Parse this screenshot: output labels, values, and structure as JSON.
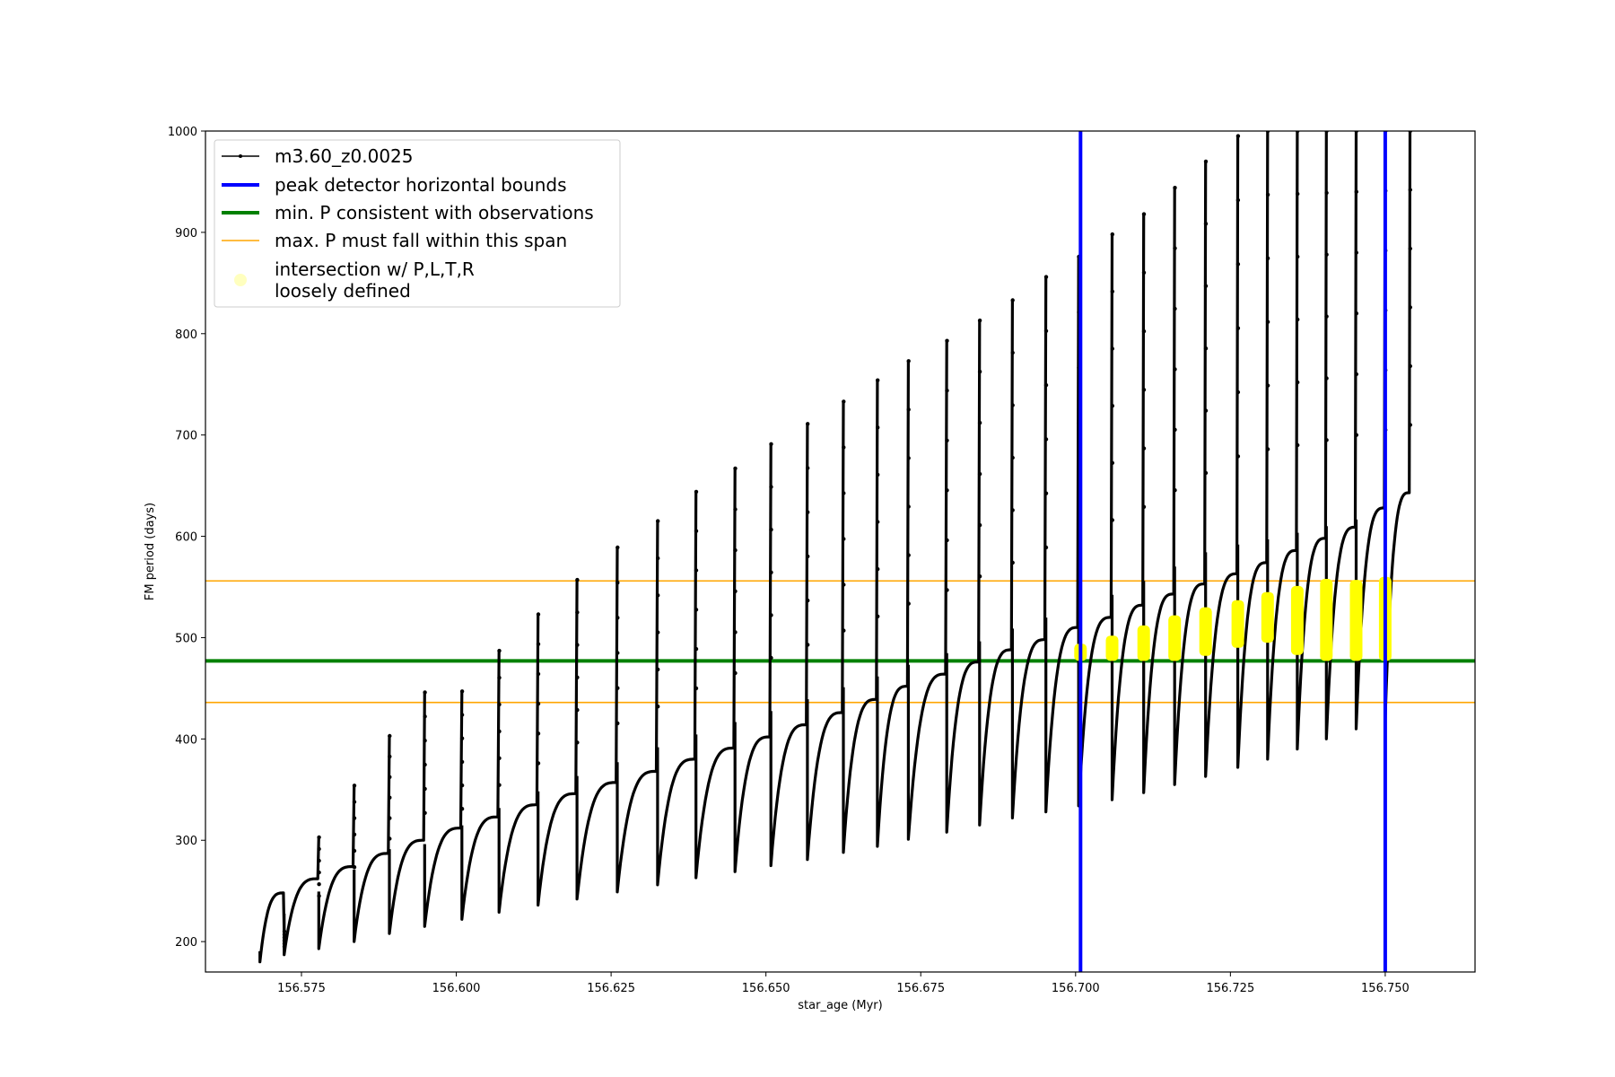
{
  "chart_data": {
    "type": "line",
    "title": "",
    "xlabel": "star_age (Myr)",
    "ylabel": "FM period (days)",
    "xlim": [
      156.5595,
      156.7645
    ],
    "ylim": [
      170,
      1000
    ],
    "xticks": [
      156.575,
      156.6,
      156.625,
      156.65,
      156.675,
      156.7,
      156.725,
      156.75
    ],
    "xtick_labels": [
      "156.575",
      "156.600",
      "156.625",
      "156.650",
      "156.675",
      "156.700",
      "156.725",
      "156.750"
    ],
    "yticks": [
      200,
      300,
      400,
      500,
      600,
      700,
      800,
      900,
      1000
    ],
    "ytick_labels": [
      "200",
      "300",
      "400",
      "500",
      "600",
      "700",
      "800",
      "900",
      "1000"
    ],
    "grid": false,
    "legend_position": "top-left",
    "series": [
      {
        "name": "m3.60_z0.0025",
        "kind": "line-marker",
        "color": "#000000",
        "pulses": [
          {
            "x0": 156.5683,
            "x1": 156.5722,
            "min": 180,
            "max": 248,
            "spike": 210
          },
          {
            "x0": 156.5722,
            "x1": 156.5778,
            "min": 187,
            "max": 262,
            "spike": 303
          },
          {
            "x0": 156.5778,
            "x1": 156.5835,
            "min": 193,
            "max": 274,
            "spike": 354
          },
          {
            "x0": 156.5835,
            "x1": 156.5892,
            "min": 200,
            "max": 287,
            "spike": 403
          },
          {
            "x0": 156.5892,
            "x1": 156.5949,
            "min": 208,
            "max": 300,
            "spike": 446
          },
          {
            "x0": 156.5949,
            "x1": 156.6009,
            "min": 215,
            "max": 312,
            "spike": 447
          },
          {
            "x0": 156.6009,
            "x1": 156.6069,
            "min": 222,
            "max": 323,
            "spike": 487
          },
          {
            "x0": 156.6069,
            "x1": 156.6132,
            "min": 229,
            "max": 335,
            "spike": 523
          },
          {
            "x0": 156.6132,
            "x1": 156.6195,
            "min": 236,
            "max": 346,
            "spike": 557
          },
          {
            "x0": 156.6195,
            "x1": 156.626,
            "min": 242,
            "max": 357,
            "spike": 589
          },
          {
            "x0": 156.626,
            "x1": 156.6325,
            "min": 249,
            "max": 368,
            "spike": 615
          },
          {
            "x0": 156.6325,
            "x1": 156.6387,
            "min": 256,
            "max": 380,
            "spike": 644
          },
          {
            "x0": 156.6387,
            "x1": 156.645,
            "min": 263,
            "max": 391,
            "spike": 667
          },
          {
            "x0": 156.645,
            "x1": 156.6508,
            "min": 269,
            "max": 402,
            "spike": 691
          },
          {
            "x0": 156.6508,
            "x1": 156.6567,
            "min": 275,
            "max": 414,
            "spike": 711
          },
          {
            "x0": 156.6567,
            "x1": 156.6625,
            "min": 281,
            "max": 426,
            "spike": 733
          },
          {
            "x0": 156.6625,
            "x1": 156.668,
            "min": 288,
            "max": 439,
            "spike": 754
          },
          {
            "x0": 156.668,
            "x1": 156.673,
            "min": 294,
            "max": 452,
            "spike": 773
          },
          {
            "x0": 156.673,
            "x1": 156.6792,
            "min": 301,
            "max": 464,
            "spike": 793
          },
          {
            "x0": 156.6792,
            "x1": 156.6845,
            "min": 308,
            "max": 476,
            "spike": 813
          },
          {
            "x0": 156.6845,
            "x1": 156.6898,
            "min": 315,
            "max": 488,
            "spike": 833
          },
          {
            "x0": 156.6898,
            "x1": 156.6952,
            "min": 322,
            "max": 498,
            "spike": 856
          },
          {
            "x0": 156.6952,
            "x1": 156.7005,
            "min": 328,
            "max": 510,
            "spike": 876
          },
          {
            "x0": 156.7005,
            "x1": 156.7059,
            "min": 334,
            "max": 520,
            "spike": 898
          },
          {
            "x0": 156.7059,
            "x1": 156.711,
            "min": 340,
            "max": 532,
            "spike": 918
          },
          {
            "x0": 156.711,
            "x1": 156.716,
            "min": 347,
            "max": 543,
            "spike": 944
          },
          {
            "x0": 156.716,
            "x1": 156.721,
            "min": 355,
            "max": 553,
            "spike": 970
          },
          {
            "x0": 156.721,
            "x1": 156.7262,
            "min": 363,
            "max": 563,
            "spike": 995
          },
          {
            "x0": 156.7262,
            "x1": 156.731,
            "min": 372,
            "max": 574,
            "spike": 1000
          },
          {
            "x0": 156.731,
            "x1": 156.7358,
            "min": 380,
            "max": 586,
            "spike": 1000
          },
          {
            "x0": 156.7358,
            "x1": 156.7405,
            "min": 390,
            "max": 598,
            "spike": 1000
          },
          {
            "x0": 156.7405,
            "x1": 156.7453,
            "min": 400,
            "max": 609,
            "spike": 1000
          },
          {
            "x0": 156.7453,
            "x1": 156.75,
            "min": 410,
            "max": 628,
            "spike": 1000
          },
          {
            "x0": 156.75,
            "x1": 156.754,
            "min": 420,
            "max": 643,
            "spike": 1000
          }
        ]
      },
      {
        "name": "peak detector horizontal bounds",
        "kind": "vline",
        "color": "#0000ff",
        "x": [
          156.7008,
          156.75
        ]
      },
      {
        "name": "min. P consistent with observations",
        "kind": "hline",
        "color": "#008000",
        "y": 477
      },
      {
        "name": "max. P must fall within this span",
        "kind": "hline",
        "color": "#ffa500",
        "y": [
          556,
          436
        ]
      },
      {
        "name": "intersection w/ P,L,T,R\nloosely defined",
        "kind": "scatter",
        "color": "#ffff00",
        "segments": [
          {
            "x": 156.7008,
            "y0": 477,
            "y1": 494
          },
          {
            "x": 156.7059,
            "y0": 477,
            "y1": 502
          },
          {
            "x": 156.711,
            "y0": 477,
            "y1": 512
          },
          {
            "x": 156.716,
            "y0": 477,
            "y1": 522
          },
          {
            "x": 156.721,
            "y0": 482,
            "y1": 530
          },
          {
            "x": 156.7262,
            "y0": 490,
            "y1": 537
          },
          {
            "x": 156.731,
            "y0": 495,
            "y1": 545
          },
          {
            "x": 156.7358,
            "y0": 483,
            "y1": 551
          },
          {
            "x": 156.7405,
            "y0": 477,
            "y1": 558
          },
          {
            "x": 156.7453,
            "y0": 477,
            "y1": 557
          },
          {
            "x": 156.75,
            "y0": 477,
            "y1": 560
          }
        ]
      }
    ]
  }
}
